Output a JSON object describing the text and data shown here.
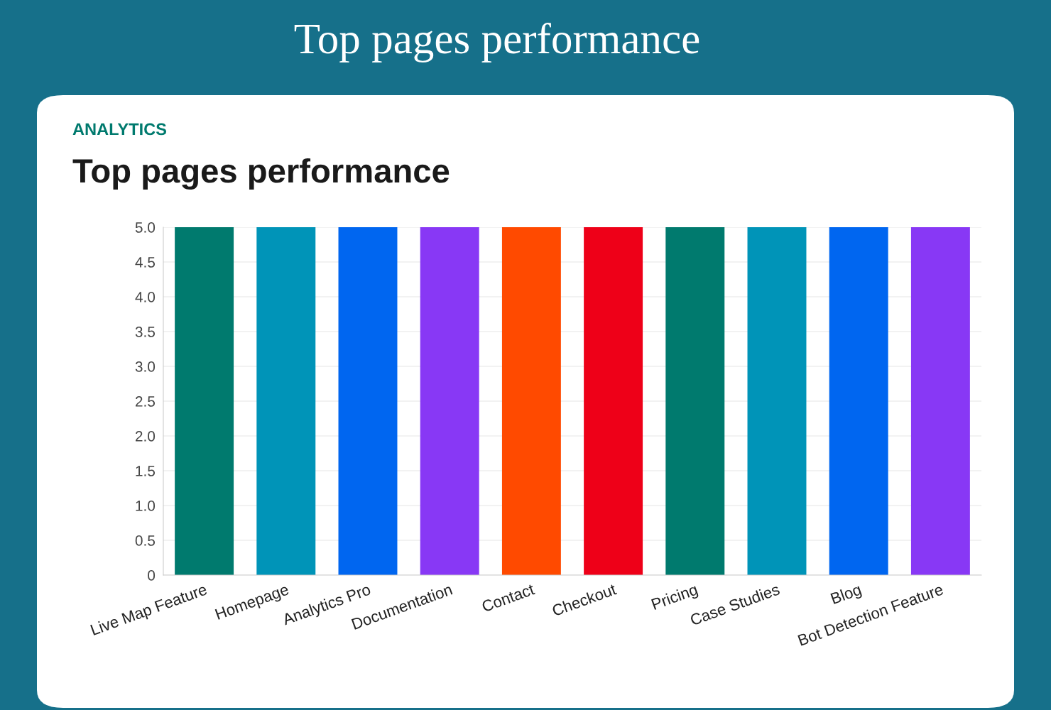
{
  "chart_data": {
    "type": "bar",
    "title": "Top pages performance",
    "subtitle": "ANALYTICS",
    "annotations": [
      "Top pages performance"
    ],
    "categories": [
      "Live Map Feature",
      "Homepage",
      "Analytics Pro",
      "Documentation",
      "Contact",
      "Checkout",
      "Pricing",
      "Case Studies",
      "Blog",
      "Bot Detection Feature"
    ],
    "values": [
      5.0,
      5.0,
      5.0,
      5.0,
      5.0,
      5.0,
      5.0,
      5.0,
      5.0,
      5.0
    ],
    "colors": [
      "#007a6e",
      "#0094b8",
      "#0066f0",
      "#8838f5",
      "#ff4a00",
      "#ee0018",
      "#007a6e",
      "#0094b8",
      "#0066f0",
      "#8838f5"
    ],
    "ylim": [
      0,
      5.0
    ],
    "yticks": [
      0,
      {
        "value": 0.5,
        "label": "0.5"
      },
      {
        "value": 1.0,
        "label": "1.0"
      },
      {
        "value": 1.5,
        "label": "1.5"
      },
      {
        "value": 2.0,
        "label": "2.0"
      },
      {
        "value": 2.5,
        "label": "2.5"
      },
      {
        "value": 3.0,
        "label": "3.0"
      },
      {
        "value": 3.5,
        "label": "3.5"
      },
      {
        "value": 4.0,
        "label": "4.0"
      },
      {
        "value": 4.5,
        "label": "4.5"
      },
      {
        "value": 5.0,
        "label": "5.0"
      }
    ],
    "grid": "y",
    "legend": false
  }
}
